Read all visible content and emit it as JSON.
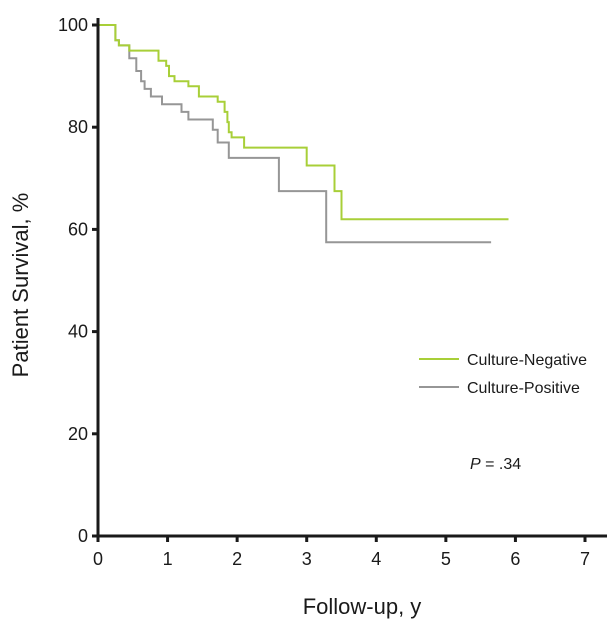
{
  "chart_data": {
    "type": "line",
    "title": "",
    "xlabel": "Follow-up, y",
    "ylabel": "Patient Survival, %",
    "xlim": [
      0,
      7
    ],
    "ylim": [
      0,
      100
    ],
    "x_ticks": [
      "0",
      "1",
      "2",
      "3",
      "4",
      "5",
      "6",
      "7"
    ],
    "y_ticks": [
      "0",
      "20",
      "40",
      "60",
      "80",
      "100"
    ],
    "grid": false,
    "step": true,
    "legend_position": "right",
    "annotation": {
      "p_label": "P",
      "p_value": " = .34"
    },
    "series": [
      {
        "name": "Culture-Negative",
        "color": "#a8cf38",
        "points": [
          [
            0,
            100
          ],
          [
            0.25,
            100
          ],
          [
            0.25,
            97
          ],
          [
            0.3,
            97
          ],
          [
            0.3,
            96
          ],
          [
            0.45,
            96
          ],
          [
            0.45,
            95
          ],
          [
            0.87,
            95
          ],
          [
            0.87,
            93
          ],
          [
            0.98,
            93
          ],
          [
            0.98,
            92
          ],
          [
            1.02,
            92
          ],
          [
            1.02,
            90
          ],
          [
            1.1,
            90
          ],
          [
            1.1,
            89
          ],
          [
            1.3,
            89
          ],
          [
            1.3,
            88
          ],
          [
            1.45,
            88
          ],
          [
            1.45,
            86
          ],
          [
            1.72,
            86
          ],
          [
            1.72,
            85
          ],
          [
            1.82,
            85
          ],
          [
            1.82,
            83
          ],
          [
            1.86,
            83
          ],
          [
            1.86,
            81
          ],
          [
            1.88,
            81
          ],
          [
            1.88,
            79
          ],
          [
            1.92,
            79
          ],
          [
            1.92,
            78
          ],
          [
            2.1,
            78
          ],
          [
            2.1,
            76
          ],
          [
            3.0,
            76
          ],
          [
            3.0,
            72.5
          ],
          [
            3.4,
            72.5
          ],
          [
            3.4,
            67.5
          ],
          [
            3.5,
            67.5
          ],
          [
            3.5,
            62
          ],
          [
            5.9,
            62
          ]
        ]
      },
      {
        "name": "Culture-Positive",
        "color": "#969696",
        "points": [
          [
            0,
            100
          ],
          [
            0.25,
            100
          ],
          [
            0.25,
            97
          ],
          [
            0.3,
            97
          ],
          [
            0.3,
            96
          ],
          [
            0.45,
            96
          ],
          [
            0.45,
            93.5
          ],
          [
            0.55,
            93.5
          ],
          [
            0.55,
            91
          ],
          [
            0.62,
            91
          ],
          [
            0.62,
            89
          ],
          [
            0.67,
            89
          ],
          [
            0.67,
            87.5
          ],
          [
            0.76,
            87.5
          ],
          [
            0.76,
            86
          ],
          [
            0.92,
            86
          ],
          [
            0.92,
            84.5
          ],
          [
            1.2,
            84.5
          ],
          [
            1.2,
            83
          ],
          [
            1.3,
            83
          ],
          [
            1.3,
            81.5
          ],
          [
            1.65,
            81.5
          ],
          [
            1.65,
            79.5
          ],
          [
            1.72,
            79.5
          ],
          [
            1.72,
            77
          ],
          [
            1.88,
            77
          ],
          [
            1.88,
            74
          ],
          [
            2.6,
            74
          ],
          [
            2.6,
            67.5
          ],
          [
            3.28,
            67.5
          ],
          [
            3.28,
            57.5
          ],
          [
            5.65,
            57.5
          ]
        ]
      }
    ]
  }
}
